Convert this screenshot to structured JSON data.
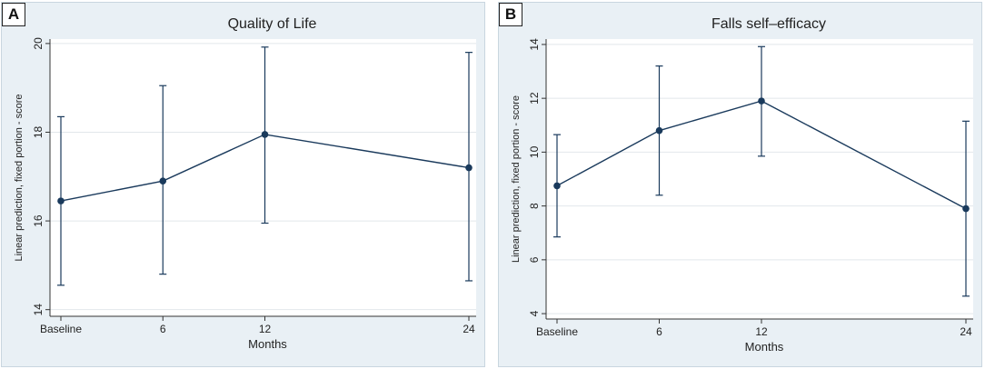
{
  "panels": [
    {
      "label": "A"
    },
    {
      "label": "B"
    }
  ],
  "colors": {
    "plot_background": "#ffffff",
    "panel_background": "#e9f0f5",
    "line": "#1a3a5c",
    "grid": "#e2e7eb",
    "axis": "#333333"
  },
  "chart_data": [
    {
      "type": "line",
      "title": "Quality of Life",
      "xlabel": "Months",
      "ylabel": "Linear prediction, fixed portion - score",
      "categories": [
        "Baseline",
        "6",
        "12",
        "24"
      ],
      "x": [
        0,
        6,
        12,
        24
      ],
      "values": [
        16.45,
        16.9,
        17.95,
        17.2
      ],
      "ci_lower": [
        14.55,
        14.8,
        15.95,
        14.65
      ],
      "ci_upper": [
        18.35,
        19.05,
        19.92,
        19.8
      ],
      "ylim": [
        13.85,
        20.1
      ],
      "yticks": [
        14,
        16,
        18,
        20
      ],
      "grid": true,
      "legend": "none"
    },
    {
      "type": "line",
      "title": "Falls self–efficacy",
      "xlabel": "Months",
      "ylabel": "Linear prediction, fixed portion - score",
      "categories": [
        "Baseline",
        "6",
        "12",
        "24"
      ],
      "x": [
        0,
        6,
        12,
        24
      ],
      "values": [
        8.75,
        10.8,
        11.9,
        7.9
      ],
      "ci_lower": [
        6.85,
        8.4,
        9.85,
        4.65
      ],
      "ci_upper": [
        10.65,
        13.2,
        13.92,
        11.15
      ],
      "ylim": [
        3.8,
        14.2
      ],
      "yticks": [
        4,
        6,
        8,
        10,
        12,
        14
      ],
      "grid": true,
      "legend": "none"
    }
  ]
}
